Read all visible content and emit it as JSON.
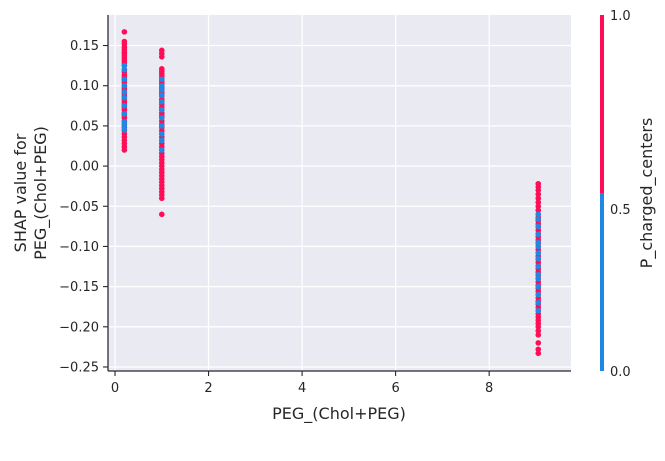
{
  "chart_data": {
    "type": "scatter",
    "xlabel": "PEG_(Chol+PEG)",
    "ylabel": [
      "SHAP value for",
      "PEG_(Chol+PEG)"
    ],
    "xlim": [
      -0.15,
      9.75
    ],
    "ylim": [
      -0.255,
      0.188
    ],
    "x_ticks": [
      0,
      2,
      4,
      6,
      8
    ],
    "y_ticks": [
      0.15,
      0.1,
      0.05,
      0.0,
      -0.05,
      -0.1,
      -0.15,
      -0.2,
      -0.25
    ],
    "grid": true,
    "colorbar": {
      "label": "P_charged_centers",
      "range": [
        0.0,
        1.0
      ],
      "tick_labels": [
        "1.0",
        "0.5",
        "0.0"
      ],
      "low_color": "#1e88e5",
      "high_color": "#ff0d57"
    },
    "colors": {
      "background": "#eaeaf2",
      "grid": "#ffffff",
      "low": "#1e88e5",
      "high": "#ff0d57"
    },
    "groups": [
      {
        "x": 0.2,
        "high_y": [
          0.167,
          0.155,
          0.152,
          0.148,
          0.145,
          0.142,
          0.14,
          0.137,
          0.134,
          0.131,
          0.128,
          0.125,
          0.12,
          0.117,
          0.113,
          0.11,
          0.107,
          0.104,
          0.1,
          0.097,
          0.094,
          0.09,
          0.087,
          0.083,
          0.08,
          0.077,
          0.073,
          0.07,
          0.066,
          0.063,
          0.06,
          0.056,
          0.052,
          0.048,
          0.044,
          0.04,
          0.036,
          0.032,
          0.028,
          0.024,
          0.02
        ],
        "low_y": [
          0.125,
          0.12,
          0.108,
          0.1,
          0.092,
          0.085,
          0.075,
          0.065,
          0.055,
          0.05,
          0.045
        ]
      },
      {
        "x": 1.0,
        "high_y": [
          0.144,
          0.14,
          0.136,
          0.121,
          0.118,
          0.115,
          0.112,
          0.109,
          0.106,
          0.103,
          0.1,
          0.097,
          0.093,
          0.09,
          0.087,
          0.083,
          0.08,
          0.077,
          0.073,
          0.07,
          0.066,
          0.063,
          0.06,
          0.056,
          0.052,
          0.048,
          0.044,
          0.04,
          0.036,
          0.032,
          0.028,
          0.024,
          0.02,
          0.016,
          0.012,
          0.008,
          0.004,
          0.0,
          -0.004,
          -0.008,
          -0.012,
          -0.016,
          -0.02,
          -0.024,
          -0.028,
          -0.032,
          -0.036,
          -0.04,
          -0.06
        ],
        "low_y": [
          0.108,
          0.1,
          0.095,
          0.088,
          0.08,
          0.07,
          0.06,
          0.05,
          0.04,
          0.032,
          0.02
        ]
      },
      {
        "x": 9.05,
        "high_y": [
          -0.022,
          -0.026,
          -0.03,
          -0.035,
          -0.04,
          -0.045,
          -0.05,
          -0.055,
          -0.06,
          -0.064,
          -0.068,
          -0.072,
          -0.076,
          -0.08,
          -0.084,
          -0.088,
          -0.092,
          -0.096,
          -0.1,
          -0.104,
          -0.108,
          -0.112,
          -0.116,
          -0.12,
          -0.124,
          -0.128,
          -0.132,
          -0.136,
          -0.14,
          -0.144,
          -0.148,
          -0.152,
          -0.156,
          -0.16,
          -0.164,
          -0.168,
          -0.172,
          -0.176,
          -0.18,
          -0.184,
          -0.188,
          -0.192,
          -0.196,
          -0.2,
          -0.205,
          -0.21,
          -0.22,
          -0.228,
          -0.233
        ],
        "low_y": [
          -0.06,
          -0.066,
          -0.075,
          -0.085,
          -0.095,
          -0.1,
          -0.108,
          -0.115,
          -0.125,
          -0.135,
          -0.14,
          -0.15,
          -0.16,
          -0.17,
          -0.18
        ]
      }
    ]
  }
}
